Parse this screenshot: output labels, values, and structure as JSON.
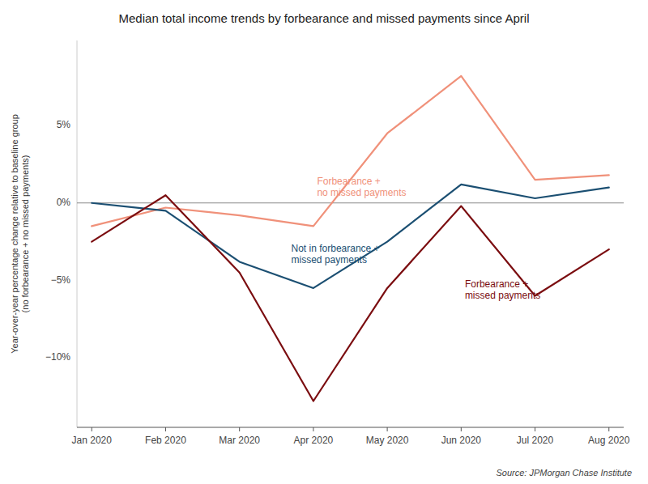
{
  "chart_data": {
    "type": "line",
    "title": "Median total income trends by forbearance and missed payments since April",
    "ylabel": "Year-over-year percentage change relative to baseline group\n(no forbearance + no missed payments)",
    "source": "Source: JPMorgan Chase Institute",
    "categories": [
      "Jan 2020",
      "Feb 2020",
      "Mar 2020",
      "Apr 2020",
      "May 2020",
      "Jun 2020",
      "Jul 2020",
      "Aug 2020"
    ],
    "series": [
      {
        "color": "#F0917A",
        "values": [
          -1.5,
          -0.3,
          -0.8,
          -1.5,
          4.5,
          8.2,
          1.5,
          1.8
        ]
      },
      {
        "color": "#1B4F72",
        "values": [
          0.0,
          -0.5,
          -3.8,
          -5.5,
          -2.5,
          1.2,
          0.3,
          1.0
        ]
      },
      {
        "color": "#7B0D10",
        "values": [
          -2.5,
          0.5,
          -4.5,
          -12.8,
          -5.5,
          -0.2,
          -6.0,
          -3.0
        ]
      }
    ],
    "annotations": [
      {
        "text": "Forbearance +\nno missed payments",
        "color": "#F0917A",
        "x": 3.05,
        "y": 1.8
      },
      {
        "text": "Not in forbearance +\nmissed payments",
        "color": "#1B4F72",
        "x": 2.7,
        "y": -2.5
      },
      {
        "text": "Forbearance +\nmissed payments",
        "color": "#7B0D10",
        "x": 5.05,
        "y": -4.8
      }
    ],
    "ylim": [
      -14.5,
      10.5
    ],
    "yticks": [
      {
        "value": -10,
        "label": "−10%"
      },
      {
        "value": -5,
        "label": "−5%"
      },
      {
        "value": 0,
        "label": "0%"
      },
      {
        "value": 5,
        "label": "5%"
      }
    ],
    "grid": false
  }
}
